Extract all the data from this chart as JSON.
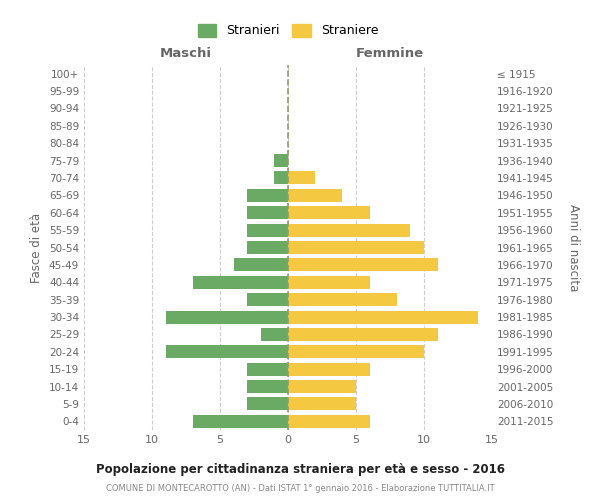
{
  "age_groups": [
    "0-4",
    "5-9",
    "10-14",
    "15-19",
    "20-24",
    "25-29",
    "30-34",
    "35-39",
    "40-44",
    "45-49",
    "50-54",
    "55-59",
    "60-64",
    "65-69",
    "70-74",
    "75-79",
    "80-84",
    "85-89",
    "90-94",
    "95-99",
    "100+"
  ],
  "birth_years": [
    "2011-2015",
    "2006-2010",
    "2001-2005",
    "1996-2000",
    "1991-1995",
    "1986-1990",
    "1981-1985",
    "1976-1980",
    "1971-1975",
    "1966-1970",
    "1961-1965",
    "1956-1960",
    "1951-1955",
    "1946-1950",
    "1941-1945",
    "1936-1940",
    "1931-1935",
    "1926-1930",
    "1921-1925",
    "1916-1920",
    "≤ 1915"
  ],
  "maschi": [
    7,
    3,
    3,
    3,
    9,
    2,
    9,
    3,
    7,
    4,
    3,
    3,
    3,
    3,
    1,
    1,
    0,
    0,
    0,
    0,
    0
  ],
  "femmine": [
    6,
    5,
    5,
    6,
    10,
    11,
    14,
    8,
    6,
    11,
    10,
    9,
    6,
    4,
    2,
    0,
    0,
    0,
    0,
    0,
    0
  ],
  "maschi_color": "#6aaa64",
  "femmine_color": "#f5c842",
  "bar_height": 0.75,
  "xlim": 15,
  "title": "Popolazione per cittadinanza straniera per età e sesso - 2016",
  "subtitle": "COMUNE DI MONTECAROTTO (AN) - Dati ISTAT 1° gennaio 2016 - Elaborazione TUTTITALIA.IT",
  "ylabel_left": "Fasce di età",
  "ylabel_right": "Anni di nascita",
  "xlabel_left": "Maschi",
  "xlabel_right": "Femmine",
  "legend_maschi": "Stranieri",
  "legend_femmine": "Straniere",
  "background_color": "#ffffff",
  "grid_color": "#cccccc",
  "text_color": "#666666",
  "title_color": "#222222",
  "subtitle_color": "#888888",
  "center_line_color": "#999966"
}
